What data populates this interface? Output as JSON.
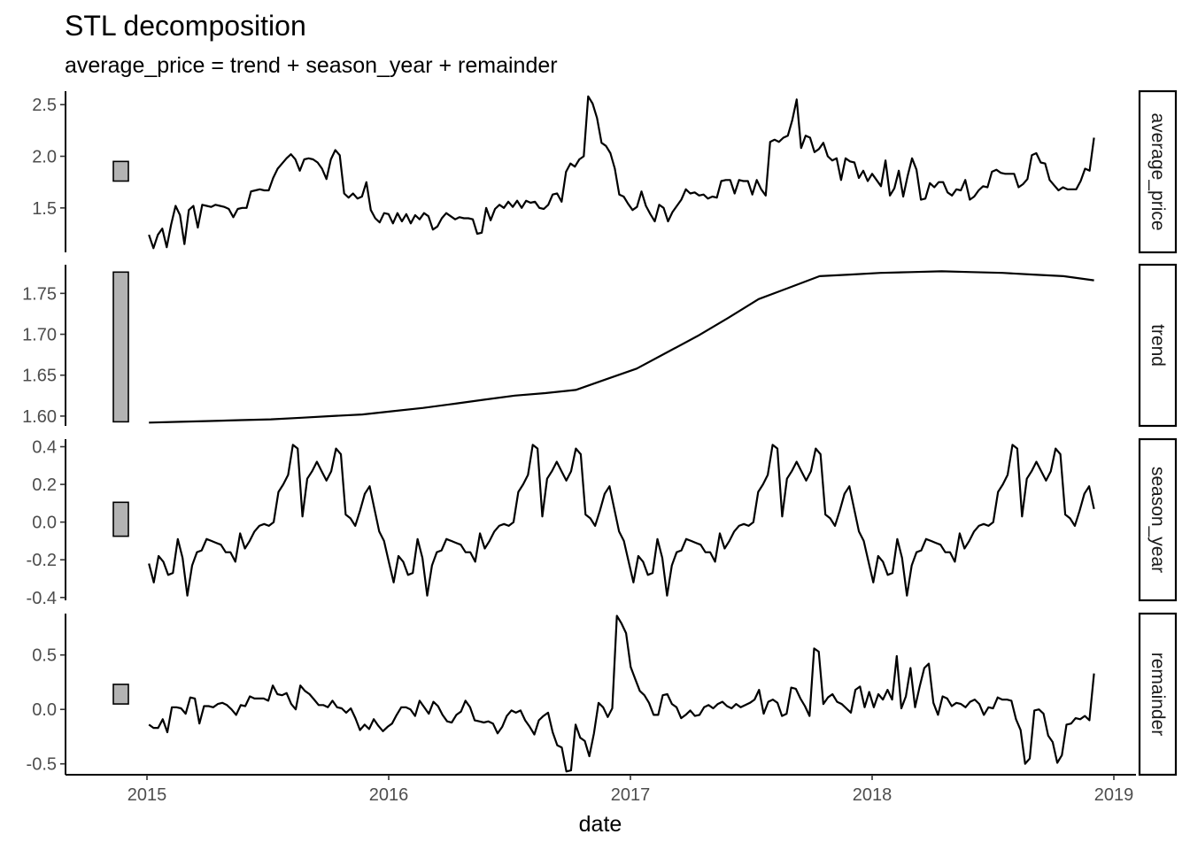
{
  "chart_data": {
    "type": "line",
    "title": "STL decomposition",
    "subtitle": "average_price = trend + season_year + remainder",
    "xlabel": "date",
    "x_ticks": [
      "2015",
      "2016",
      "2017",
      "2018",
      "2019"
    ],
    "x_range": [
      "2015-01-04",
      "2018-12-02"
    ],
    "colors": {
      "line": "#000000",
      "scale_bar": "#b3b3b3"
    },
    "panels": [
      {
        "name": "average_price",
        "ylim": [
          1.07,
          2.63
        ],
        "y_ticks": [
          "1.5",
          "2.0",
          "2.5"
        ],
        "scale_bar": [
          1.76,
          1.95
        ],
        "values": [
          1.24,
          1.11,
          1.24,
          1.3,
          1.12,
          1.34,
          1.52,
          1.43,
          1.15,
          1.48,
          1.52,
          1.31,
          1.53,
          1.52,
          1.51,
          1.53,
          1.52,
          1.51,
          1.49,
          1.41,
          1.49,
          1.5,
          1.5,
          1.66,
          1.67,
          1.68,
          1.67,
          1.67,
          1.79,
          1.88,
          1.93,
          1.98,
          2.02,
          1.97,
          1.86,
          1.97,
          1.98,
          1.97,
          1.94,
          1.88,
          1.78,
          1.97,
          2.06,
          2.01,
          1.64,
          1.6,
          1.64,
          1.59,
          1.61,
          1.75,
          1.48,
          1.4,
          1.36,
          1.45,
          1.44,
          1.35,
          1.45,
          1.37,
          1.44,
          1.35,
          1.43,
          1.39,
          1.45,
          1.42,
          1.29,
          1.32,
          1.4,
          1.45,
          1.42,
          1.39,
          1.41,
          1.4,
          1.4,
          1.39,
          1.25,
          1.26,
          1.5,
          1.38,
          1.49,
          1.53,
          1.5,
          1.56,
          1.51,
          1.57,
          1.5,
          1.57,
          1.55,
          1.56,
          1.5,
          1.49,
          1.53,
          1.63,
          1.64,
          1.56,
          1.85,
          1.93,
          1.9,
          1.97,
          2.0,
          2.58,
          2.51,
          2.37,
          2.13,
          2.1,
          2.03,
          1.88,
          1.63,
          1.61,
          1.54,
          1.48,
          1.51,
          1.66,
          1.52,
          1.44,
          1.37,
          1.53,
          1.5,
          1.37,
          1.46,
          1.52,
          1.58,
          1.68,
          1.64,
          1.65,
          1.62,
          1.63,
          1.59,
          1.61,
          1.6,
          1.76,
          1.77,
          1.77,
          1.64,
          1.77,
          1.76,
          1.76,
          1.63,
          1.77,
          1.68,
          1.62,
          2.14,
          2.16,
          2.14,
          2.18,
          2.2,
          2.35,
          2.55,
          2.08,
          2.2,
          2.18,
          2.04,
          2.07,
          2.13,
          2.0,
          1.96,
          1.98,
          1.77,
          1.98,
          1.95,
          1.94,
          1.79,
          1.86,
          1.76,
          1.83,
          1.77,
          1.71,
          1.96,
          1.62,
          1.69,
          1.86,
          1.61,
          1.81,
          1.98,
          1.87,
          1.58,
          1.59,
          1.74,
          1.7,
          1.75,
          1.75,
          1.65,
          1.62,
          1.68,
          1.67,
          1.77,
          1.58,
          1.61,
          1.67,
          1.71,
          1.7,
          1.85,
          1.87,
          1.84,
          1.83,
          1.83,
          1.83,
          1.7,
          1.73,
          1.78,
          2.01,
          2.03,
          1.94,
          1.93,
          1.77,
          1.72,
          1.67,
          1.7,
          1.68,
          1.68,
          1.68,
          1.76,
          1.88,
          1.86,
          2.18
        ]
      },
      {
        "name": "trend",
        "ylim": [
          1.588,
          1.785
        ],
        "y_ticks": [
          "1.60",
          "1.65",
          "1.70",
          "1.75"
        ],
        "scale_bar": [
          1.593,
          1.776
        ],
        "values": [
          1.592,
          1.593,
          1.594,
          1.595,
          1.596,
          1.598,
          1.6,
          1.602,
          1.606,
          1.61,
          1.615,
          1.62,
          1.625,
          1.628,
          1.632,
          1.645,
          1.658,
          1.678,
          1.698,
          1.72,
          1.743,
          1.757,
          1.771,
          1.773,
          1.775,
          1.776,
          1.777,
          1.776,
          1.775,
          1.773,
          1.771,
          1.766
        ]
      },
      {
        "name": "season_year",
        "ylim": [
          -0.415,
          0.44
        ],
        "y_ticks": [
          "-0.4",
          "-0.2",
          "0.0",
          "0.2",
          "0.4"
        ],
        "scale_bar": [
          -0.075,
          0.105
        ],
        "values": [
          -0.22,
          -0.32,
          -0.18,
          -0.21,
          -0.28,
          -0.27,
          -0.09,
          -0.19,
          -0.39,
          -0.23,
          -0.16,
          -0.15,
          -0.09,
          -0.1,
          -0.11,
          -0.12,
          -0.16,
          -0.16,
          -0.21,
          -0.06,
          -0.14,
          -0.1,
          -0.05,
          -0.02,
          -0.01,
          -0.02,
          0.0,
          0.16,
          0.2,
          0.25,
          0.41,
          0.39,
          0.03,
          0.23,
          0.27,
          0.32,
          0.27,
          0.22,
          0.27,
          0.39,
          0.36,
          0.04,
          0.02,
          -0.02,
          0.06,
          0.15,
          0.19,
          0.07,
          -0.05,
          -0.1,
          -0.21,
          -0.32,
          -0.18,
          -0.21,
          -0.28,
          -0.27,
          -0.09,
          -0.19,
          -0.39,
          -0.23,
          -0.16,
          -0.15,
          -0.09,
          -0.1,
          -0.11,
          -0.12,
          -0.16,
          -0.16,
          -0.21,
          -0.06,
          -0.14,
          -0.1,
          -0.05,
          -0.02,
          -0.01,
          -0.02,
          0.0,
          0.16,
          0.2,
          0.25,
          0.41,
          0.39,
          0.03,
          0.23,
          0.27,
          0.32,
          0.27,
          0.22,
          0.27,
          0.39,
          0.36,
          0.04,
          0.02,
          -0.02,
          0.06,
          0.15,
          0.19,
          0.07,
          -0.05,
          -0.1,
          -0.21,
          -0.32,
          -0.18,
          -0.21,
          -0.28,
          -0.27,
          -0.09,
          -0.19,
          -0.39,
          -0.23,
          -0.16,
          -0.15,
          -0.09,
          -0.1,
          -0.11,
          -0.12,
          -0.16,
          -0.16,
          -0.21,
          -0.06,
          -0.14,
          -0.1,
          -0.05,
          -0.02,
          -0.01,
          -0.02,
          0.0,
          0.16,
          0.2,
          0.25,
          0.41,
          0.39,
          0.03,
          0.23,
          0.27,
          0.32,
          0.27,
          0.22,
          0.27,
          0.39,
          0.36,
          0.04,
          0.02,
          -0.02,
          0.06,
          0.15,
          0.19,
          0.07,
          -0.05,
          -0.1,
          -0.21,
          -0.32,
          -0.18,
          -0.21,
          -0.28,
          -0.27,
          -0.09,
          -0.19,
          -0.39,
          -0.23,
          -0.16,
          -0.15,
          -0.09,
          -0.1,
          -0.11,
          -0.12,
          -0.16,
          -0.16,
          -0.21,
          -0.06,
          -0.14,
          -0.1,
          -0.05,
          -0.02,
          -0.01,
          -0.02,
          0.0,
          0.16,
          0.2,
          0.25,
          0.41,
          0.39,
          0.03,
          0.23,
          0.27,
          0.32,
          0.27,
          0.22,
          0.27,
          0.39,
          0.36,
          0.04,
          0.02,
          -0.02,
          0.06,
          0.15,
          0.19,
          0.07
        ]
      },
      {
        "name": "remainder",
        "ylim": [
          -0.6,
          0.88
        ],
        "y_ticks": [
          "-0.5",
          "0.0",
          "0.5"
        ],
        "scale_bar": [
          0.05,
          0.23
        ],
        "values": [
          -0.14,
          -0.17,
          -0.17,
          -0.09,
          -0.21,
          0.02,
          0.02,
          0.01,
          -0.04,
          0.11,
          0.1,
          -0.13,
          0.03,
          0.03,
          0.02,
          0.05,
          0.06,
          0.04,
          0.0,
          -0.05,
          0.04,
          0.03,
          0.12,
          0.1,
          0.1,
          0.1,
          0.08,
          0.22,
          0.14,
          0.13,
          0.15,
          0.05,
          0.0,
          0.22,
          0.17,
          0.14,
          0.09,
          0.04,
          0.04,
          0.02,
          0.08,
          0.02,
          0.01,
          -0.03,
          0.01,
          -0.08,
          -0.19,
          -0.14,
          -0.18,
          -0.09,
          -0.15,
          -0.2,
          -0.16,
          -0.13,
          -0.05,
          0.02,
          0.02,
          0.0,
          -0.06,
          0.08,
          0.02,
          -0.04,
          0.07,
          0.03,
          -0.05,
          -0.11,
          -0.12,
          -0.05,
          -0.02,
          0.08,
          0.02,
          -0.1,
          -0.11,
          -0.12,
          -0.11,
          -0.13,
          -0.22,
          -0.16,
          -0.06,
          -0.01,
          -0.03,
          -0.01,
          -0.1,
          -0.16,
          -0.23,
          -0.1,
          -0.06,
          -0.03,
          -0.21,
          -0.33,
          -0.35,
          -0.57,
          -0.56,
          -0.14,
          -0.26,
          -0.29,
          -0.43,
          -0.22,
          0.06,
          0.02,
          -0.07,
          0.01,
          0.86,
          0.79,
          0.7,
          0.39,
          0.28,
          0.17,
          0.13,
          0.06,
          -0.05,
          -0.05,
          0.13,
          0.14,
          0.05,
          0.02,
          -0.08,
          -0.05,
          -0.01,
          -0.06,
          -0.05,
          0.02,
          0.04,
          0.01,
          0.05,
          0.07,
          0.03,
          0.01,
          0.05,
          0.02,
          0.04,
          0.06,
          0.09,
          0.18,
          -0.04,
          0.07,
          0.09,
          0.06,
          -0.06,
          -0.04,
          0.2,
          0.19,
          0.1,
          0.03,
          -0.06,
          0.56,
          0.53,
          0.05,
          0.11,
          0.14,
          0.07,
          0.05,
          0.01,
          -0.03,
          0.18,
          0.21,
          0.02,
          0.16,
          0.02,
          0.14,
          0.09,
          0.18,
          0.09,
          0.49,
          0.01,
          0.12,
          0.38,
          0.02,
          0.21,
          0.38,
          0.42,
          0.06,
          -0.05,
          0.12,
          0.1,
          0.03,
          0.06,
          0.05,
          0.02,
          0.07,
          0.09,
          0.05,
          -0.05,
          0.02,
          0.01,
          0.11,
          0.09,
          0.09,
          0.08,
          -0.09,
          -0.19,
          -0.5,
          -0.45,
          -0.01,
          0.0,
          -0.04,
          -0.24,
          -0.3,
          -0.49,
          -0.42,
          -0.14,
          -0.13,
          -0.08,
          -0.09,
          -0.06,
          -0.1,
          0.33
        ]
      }
    ]
  }
}
